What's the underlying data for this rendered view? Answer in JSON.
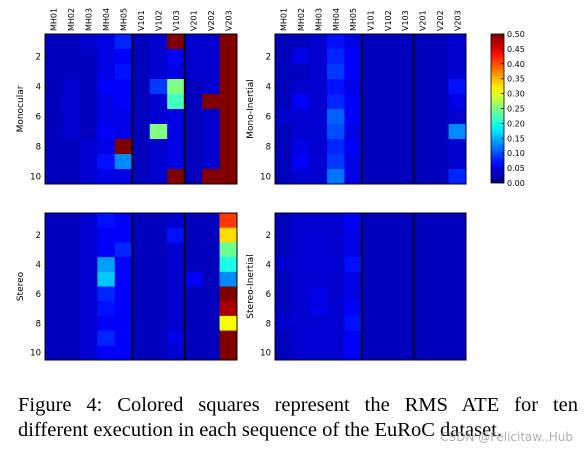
{
  "figure": {
    "column_labels": [
      "MH01",
      "MH02",
      "MH03",
      "MH04",
      "MH05",
      "V101",
      "V102",
      "V103",
      "V201",
      "V202",
      "V203"
    ],
    "row_tick_labels": [
      "2",
      "4",
      "6",
      "8",
      "10"
    ],
    "panels": [
      {
        "ylabel": "Monocular"
      },
      {
        "ylabel": "Mono-Inertial"
      },
      {
        "ylabel": "Stereo"
      },
      {
        "ylabel": "Stereo-Inertial"
      }
    ],
    "colorbar_ticks": [
      "0.50",
      "0.45",
      "0.40",
      "0.35",
      "0.30",
      "0.25",
      "0.20",
      "0.15",
      "0.10",
      "0.05",
      "0.00"
    ]
  },
  "chart_data": [
    {
      "type": "heatmap",
      "ylabel": "Monocular",
      "x": [
        "MH01",
        "MH02",
        "MH03",
        "MH04",
        "MH05",
        "V101",
        "V102",
        "V103",
        "V201",
        "V202",
        "V203"
      ],
      "y": [
        1,
        2,
        3,
        4,
        5,
        6,
        7,
        8,
        9,
        10
      ],
      "vmin": 0.0,
      "vmax": 0.5,
      "values": [
        [
          0.03,
          0.03,
          0.04,
          0.05,
          0.08,
          0.03,
          0.04,
          0.5,
          0.04,
          0.04,
          0.5
        ],
        [
          0.03,
          0.03,
          0.03,
          0.05,
          0.06,
          0.03,
          0.04,
          0.06,
          0.04,
          0.04,
          0.5
        ],
        [
          0.03,
          0.03,
          0.03,
          0.05,
          0.07,
          0.03,
          0.04,
          0.05,
          0.04,
          0.04,
          0.5
        ],
        [
          0.03,
          0.04,
          0.03,
          0.06,
          0.06,
          0.03,
          0.09,
          0.25,
          0.03,
          0.04,
          0.5
        ],
        [
          0.03,
          0.04,
          0.03,
          0.05,
          0.06,
          0.03,
          0.04,
          0.22,
          0.03,
          0.5,
          0.5
        ],
        [
          0.03,
          0.04,
          0.03,
          0.05,
          0.05,
          0.03,
          0.04,
          0.05,
          0.03,
          0.04,
          0.5
        ],
        [
          0.03,
          0.04,
          0.03,
          0.06,
          0.05,
          0.03,
          0.25,
          0.05,
          0.03,
          0.04,
          0.5
        ],
        [
          0.03,
          0.03,
          0.04,
          0.05,
          0.5,
          0.03,
          0.04,
          0.05,
          0.03,
          0.04,
          0.5
        ],
        [
          0.03,
          0.03,
          0.04,
          0.07,
          0.13,
          0.03,
          0.04,
          0.05,
          0.03,
          0.04,
          0.5
        ],
        [
          0.03,
          0.03,
          0.04,
          0.05,
          0.05,
          0.03,
          0.04,
          0.5,
          0.03,
          0.5,
          0.5
        ]
      ]
    },
    {
      "type": "heatmap",
      "ylabel": "Mono-Inertial",
      "x": [
        "MH01",
        "MH02",
        "MH03",
        "MH04",
        "MH05",
        "V101",
        "V102",
        "V103",
        "V201",
        "V202",
        "V203"
      ],
      "y": [
        1,
        2,
        3,
        4,
        5,
        6,
        7,
        8,
        9,
        10
      ],
      "vmin": 0.0,
      "vmax": 0.5,
      "values": [
        [
          0.03,
          0.03,
          0.04,
          0.07,
          0.05,
          0.03,
          0.03,
          0.03,
          0.03,
          0.03,
          0.04
        ],
        [
          0.03,
          0.05,
          0.04,
          0.08,
          0.06,
          0.03,
          0.03,
          0.03,
          0.03,
          0.03,
          0.04
        ],
        [
          0.03,
          0.03,
          0.04,
          0.09,
          0.06,
          0.03,
          0.03,
          0.03,
          0.03,
          0.03,
          0.04
        ],
        [
          0.03,
          0.04,
          0.04,
          0.07,
          0.05,
          0.03,
          0.03,
          0.03,
          0.03,
          0.03,
          0.07
        ],
        [
          0.03,
          0.06,
          0.04,
          0.08,
          0.06,
          0.03,
          0.03,
          0.03,
          0.03,
          0.03,
          0.05
        ],
        [
          0.04,
          0.04,
          0.04,
          0.11,
          0.06,
          0.03,
          0.03,
          0.03,
          0.03,
          0.03,
          0.04
        ],
        [
          0.03,
          0.04,
          0.04,
          0.1,
          0.05,
          0.03,
          0.03,
          0.03,
          0.03,
          0.03,
          0.13
        ],
        [
          0.03,
          0.05,
          0.04,
          0.08,
          0.06,
          0.03,
          0.03,
          0.03,
          0.03,
          0.03,
          0.04
        ],
        [
          0.03,
          0.06,
          0.04,
          0.09,
          0.05,
          0.03,
          0.03,
          0.03,
          0.03,
          0.03,
          0.04
        ],
        [
          0.03,
          0.04,
          0.04,
          0.12,
          0.05,
          0.03,
          0.03,
          0.03,
          0.03,
          0.03,
          0.08
        ]
      ]
    },
    {
      "type": "heatmap",
      "ylabel": "Stereo",
      "x": [
        "MH01",
        "MH02",
        "MH03",
        "MH04",
        "MH05",
        "V101",
        "V102",
        "V103",
        "V201",
        "V202",
        "V203"
      ],
      "y": [
        1,
        2,
        3,
        4,
        5,
        6,
        7,
        8,
        9,
        10
      ],
      "vmin": 0.0,
      "vmax": 0.5,
      "values": [
        [
          0.03,
          0.03,
          0.04,
          0.07,
          0.06,
          0.03,
          0.03,
          0.04,
          0.03,
          0.03,
          0.41
        ],
        [
          0.03,
          0.03,
          0.04,
          0.06,
          0.06,
          0.03,
          0.03,
          0.07,
          0.03,
          0.03,
          0.33
        ],
        [
          0.03,
          0.03,
          0.04,
          0.06,
          0.08,
          0.03,
          0.03,
          0.04,
          0.03,
          0.03,
          0.24
        ],
        [
          0.03,
          0.03,
          0.04,
          0.14,
          0.06,
          0.03,
          0.03,
          0.04,
          0.03,
          0.03,
          0.2
        ],
        [
          0.03,
          0.03,
          0.04,
          0.16,
          0.06,
          0.03,
          0.03,
          0.04,
          0.06,
          0.03,
          0.13
        ],
        [
          0.03,
          0.03,
          0.04,
          0.08,
          0.06,
          0.03,
          0.03,
          0.04,
          0.03,
          0.03,
          0.5
        ],
        [
          0.03,
          0.03,
          0.04,
          0.07,
          0.06,
          0.03,
          0.03,
          0.04,
          0.03,
          0.03,
          0.48
        ],
        [
          0.03,
          0.03,
          0.04,
          0.06,
          0.06,
          0.03,
          0.03,
          0.04,
          0.03,
          0.03,
          0.31
        ],
        [
          0.03,
          0.03,
          0.04,
          0.08,
          0.06,
          0.03,
          0.03,
          0.05,
          0.03,
          0.03,
          0.5
        ],
        [
          0.03,
          0.03,
          0.04,
          0.06,
          0.06,
          0.03,
          0.03,
          0.04,
          0.03,
          0.03,
          0.5
        ]
      ]
    },
    {
      "type": "heatmap",
      "ylabel": "Stereo-Inertial",
      "x": [
        "MH01",
        "MH02",
        "MH03",
        "MH04",
        "MH05",
        "V101",
        "V102",
        "V103",
        "V201",
        "V202",
        "V203"
      ],
      "y": [
        1,
        2,
        3,
        4,
        5,
        6,
        7,
        8,
        9,
        10
      ],
      "vmin": 0.0,
      "vmax": 0.5,
      "values": [
        [
          0.03,
          0.04,
          0.04,
          0.04,
          0.06,
          0.03,
          0.03,
          0.03,
          0.03,
          0.03,
          0.03
        ],
        [
          0.03,
          0.04,
          0.04,
          0.04,
          0.05,
          0.03,
          0.03,
          0.03,
          0.03,
          0.03,
          0.03
        ],
        [
          0.03,
          0.04,
          0.04,
          0.04,
          0.05,
          0.03,
          0.03,
          0.03,
          0.03,
          0.03,
          0.03
        ],
        [
          0.04,
          0.04,
          0.04,
          0.04,
          0.07,
          0.03,
          0.03,
          0.03,
          0.03,
          0.03,
          0.03
        ],
        [
          0.03,
          0.04,
          0.04,
          0.04,
          0.05,
          0.03,
          0.03,
          0.03,
          0.03,
          0.03,
          0.03
        ],
        [
          0.03,
          0.04,
          0.05,
          0.04,
          0.05,
          0.03,
          0.03,
          0.03,
          0.03,
          0.03,
          0.03
        ],
        [
          0.03,
          0.04,
          0.05,
          0.04,
          0.06,
          0.03,
          0.03,
          0.03,
          0.03,
          0.03,
          0.03
        ],
        [
          0.04,
          0.04,
          0.04,
          0.04,
          0.07,
          0.03,
          0.03,
          0.03,
          0.03,
          0.03,
          0.03
        ],
        [
          0.03,
          0.04,
          0.04,
          0.04,
          0.06,
          0.03,
          0.03,
          0.03,
          0.03,
          0.03,
          0.03
        ],
        [
          0.03,
          0.04,
          0.04,
          0.04,
          0.06,
          0.03,
          0.03,
          0.03,
          0.03,
          0.03,
          0.03
        ]
      ]
    }
  ],
  "caption": {
    "line1": "Figure 4: Colored squares represent the RMS ATE for ten",
    "line2": "different execution in each sequence of the EuRoC dataset."
  },
  "watermark": "CSDN @Felicitaw..Hub"
}
